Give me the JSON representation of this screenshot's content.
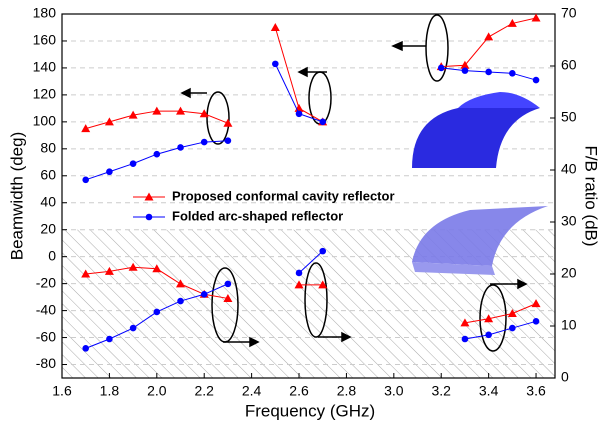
{
  "chart_data": {
    "type": "line",
    "xlabel": "Frequency (GHz)",
    "ylabel": "Beamwidth (deg)",
    "y2label": "F/B ratio (dB)",
    "x": [
      1.7,
      1.8,
      1.9,
      2.0,
      2.1,
      2.2,
      2.3,
      2.4,
      2.5,
      2.6,
      2.7,
      2.9,
      3.2,
      3.3,
      3.4,
      3.5,
      3.6
    ],
    "xlim": [
      1.6,
      3.68
    ],
    "xticks": [
      1.6,
      1.8,
      {
        "value": 2,
        "label": "2.0"
      },
      2.2,
      2.4,
      2.6,
      2.8,
      {
        "value": 3,
        "label": "3.0"
      },
      3.2,
      3.4,
      3.6
    ],
    "ylim": [
      -90,
      180
    ],
    "yticks": [
      -80,
      -60,
      -40,
      -20,
      0,
      20,
      40,
      60,
      80,
      100,
      120,
      140,
      160,
      180
    ],
    "y2lim": [
      0,
      70
    ],
    "y2ticks": [
      0,
      10,
      20,
      30,
      40,
      50,
      60,
      70
    ],
    "grid": true,
    "hatch_below": 20,
    "series": [
      {
        "name": "Proposed conformal cavity reflector",
        "color": "#ff0000",
        "marker": "triangle",
        "values": [
          95,
          100,
          105,
          108,
          108,
          106,
          99,
          null,
          170,
          110,
          100,
          null,
          141,
          142,
          163,
          173,
          177
        ]
      },
      {
        "name": "Folded arc-shaped reflector",
        "color": "#0000ff",
        "marker": "circle",
        "values": [
          57,
          63,
          69,
          76,
          81,
          85,
          86,
          null,
          143,
          106,
          100,
          null,
          140,
          138,
          137,
          136,
          131
        ]
      },
      {
        "color": "#ff0000",
        "marker": "triangle",
        "axis": "y2",
        "values": [
          20.0,
          20.5,
          21.3,
          21.0,
          18.1,
          16.1,
          15.3,
          null,
          null,
          17.9,
          17.9,
          null,
          null,
          10.6,
          11.4,
          12.4,
          14.3
        ]
      },
      {
        "color": "#0000ff",
        "marker": "circle",
        "axis": "y2",
        "values": [
          5.7,
          7.5,
          9.6,
          12.7,
          14.8,
          16.1,
          18.1,
          null,
          null,
          20.2,
          24.4,
          null,
          null,
          7.5,
          8.3,
          9.6,
          10.9
        ]
      }
    ]
  }
}
